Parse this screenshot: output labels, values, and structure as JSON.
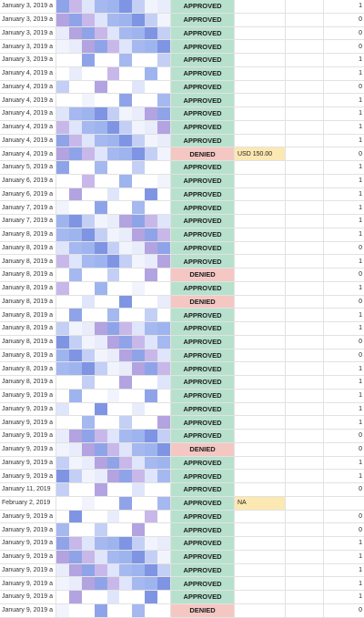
{
  "colors": {
    "approved_bg": "#b7e1cd",
    "denied_bg": "#f4c7c3",
    "amount_bg": "#fce8b2",
    "gridline": "#e2e2e2"
  },
  "rows": [
    {
      "date": "January 3, 2019 a",
      "status": "APPROVED",
      "amount": "",
      "num": "1"
    },
    {
      "date": "January 3, 2019 a",
      "status": "APPROVED",
      "amount": "",
      "num": "0"
    },
    {
      "date": "January 3, 2019 a",
      "status": "APPROVED",
      "amount": "",
      "num": "0"
    },
    {
      "date": "January 3, 2019 a",
      "status": "APPROVED",
      "amount": "",
      "num": "0"
    },
    {
      "date": "January 3, 2019 a",
      "status": "APPROVED",
      "amount": "",
      "num": "1"
    },
    {
      "date": "January 4, 2019 a",
      "status": "APPROVED",
      "amount": "",
      "num": "1"
    },
    {
      "date": "January 4, 2019 a",
      "status": "APPROVED",
      "amount": "",
      "num": "0"
    },
    {
      "date": "January 4, 2019 a",
      "status": "APPROVED",
      "amount": "",
      "num": "1"
    },
    {
      "date": "January 4, 2019 a",
      "status": "APPROVED",
      "amount": "",
      "num": "1"
    },
    {
      "date": "January 4, 2019 a",
      "status": "APPROVED",
      "amount": "",
      "num": "1"
    },
    {
      "date": "January 4, 2019 a",
      "status": "APPROVED",
      "amount": "",
      "num": "1"
    },
    {
      "date": "January 4, 2019 a",
      "status": "DENIED",
      "amount": "USD 150.00",
      "num": "0"
    },
    {
      "date": "January 5, 2019 a",
      "status": "APPROVED",
      "amount": "",
      "num": "1"
    },
    {
      "date": "January 6, 2019 a",
      "status": "APPROVED",
      "amount": "",
      "num": "1"
    },
    {
      "date": "January 6, 2019 a",
      "status": "APPROVED",
      "amount": "",
      "num": "1"
    },
    {
      "date": "January 7, 2019 a",
      "status": "APPROVED",
      "amount": "",
      "num": "1"
    },
    {
      "date": "January 7, 2019 a",
      "status": "APPROVED",
      "amount": "",
      "num": "1"
    },
    {
      "date": "January 8, 2019 a",
      "status": "APPROVED",
      "amount": "",
      "num": "1"
    },
    {
      "date": "January 8, 2019 a",
      "status": "APPROVED",
      "amount": "",
      "num": "0"
    },
    {
      "date": "January 8, 2019 a",
      "status": "APPROVED",
      "amount": "",
      "num": "1"
    },
    {
      "date": "January 8, 2019 a",
      "status": "DENIED",
      "amount": "",
      "num": "0"
    },
    {
      "date": "January 8, 2019 a",
      "status": "APPROVED",
      "amount": "",
      "num": "1"
    },
    {
      "date": "January 8, 2019 a",
      "status": "DENIED",
      "amount": "",
      "num": "0"
    },
    {
      "date": "January 8, 2019 a",
      "status": "APPROVED",
      "amount": "",
      "num": "1"
    },
    {
      "date": "January 8, 2019 a",
      "status": "APPROVED",
      "amount": "",
      "num": "1"
    },
    {
      "date": "January 8, 2019 a",
      "status": "APPROVED",
      "amount": "",
      "num": "0"
    },
    {
      "date": "January 8, 2019 a",
      "status": "APPROVED",
      "amount": "",
      "num": "0"
    },
    {
      "date": "January 8, 2019 a",
      "status": "APPROVED",
      "amount": "",
      "num": "1"
    },
    {
      "date": "January 8, 2019 a",
      "status": "APPROVED",
      "amount": "",
      "num": "1"
    },
    {
      "date": "January 9, 2019 a",
      "status": "APPROVED",
      "amount": "",
      "num": "1"
    },
    {
      "date": "January 9, 2019 a",
      "status": "APPROVED",
      "amount": "",
      "num": "1"
    },
    {
      "date": "January 9, 2019 a",
      "status": "APPROVED",
      "amount": "",
      "num": "1"
    },
    {
      "date": "January 9, 2019 a",
      "status": "APPROVED",
      "amount": "",
      "num": "0"
    },
    {
      "date": "January 9, 2019 a",
      "status": "DENIED",
      "amount": "",
      "num": "0"
    },
    {
      "date": "January 9, 2019 a",
      "status": "APPROVED",
      "amount": "",
      "num": "1"
    },
    {
      "date": "January 9, 2019 a",
      "status": "APPROVED",
      "amount": "",
      "num": "1"
    },
    {
      "date": "January 11, 2019",
      "status": "APPROVED",
      "amount": "",
      "num": "0"
    },
    {
      "date": "February 2, 2019",
      "status": "APPROVED",
      "amount": "NA",
      "num": ""
    },
    {
      "date": "January 9, 2019 a",
      "status": "APPROVED",
      "amount": "",
      "num": "0"
    },
    {
      "date": "January 9, 2019 a",
      "status": "APPROVED",
      "amount": "",
      "num": "0"
    },
    {
      "date": "January 9, 2019 a",
      "status": "APPROVED",
      "amount": "",
      "num": "1"
    },
    {
      "date": "January 9, 2019 a",
      "status": "APPROVED",
      "amount": "",
      "num": "1"
    },
    {
      "date": "January 9, 2019 a",
      "status": "APPROVED",
      "amount": "",
      "num": "1"
    },
    {
      "date": "January 9, 2019 a",
      "status": "APPROVED",
      "amount": "",
      "num": "1"
    },
    {
      "date": "January 9, 2019 a",
      "status": "APPROVED",
      "amount": "",
      "num": "1"
    },
    {
      "date": "January 9, 2019 a",
      "status": "DENIED",
      "amount": "",
      "num": "0"
    }
  ]
}
